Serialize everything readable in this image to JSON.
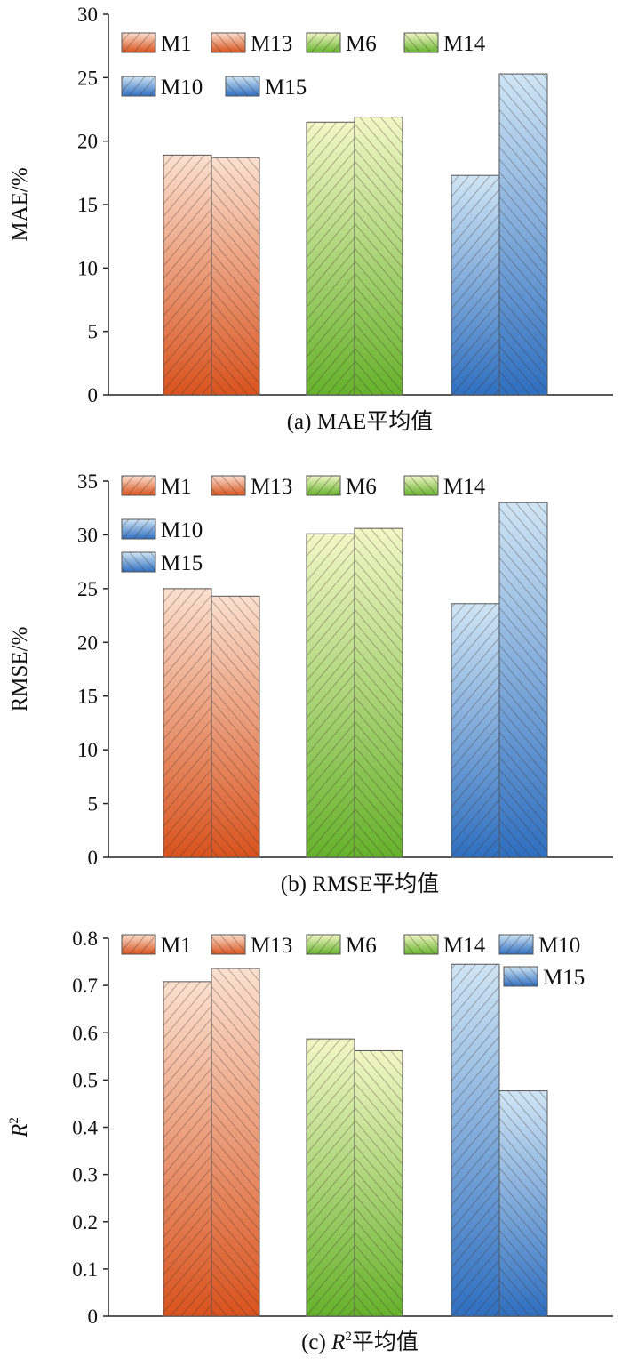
{
  "colors": {
    "M1": [
      "#fbe0cf",
      "#d9531e"
    ],
    "M13": [
      "#fbe0cf",
      "#d9531e"
    ],
    "M6": [
      "#f2f7c6",
      "#66b22c"
    ],
    "M14": [
      "#f2f7c6",
      "#66b22c"
    ],
    "M10": [
      "#cfe5f5",
      "#2f6fc0"
    ],
    "M15": [
      "#cfe5f5",
      "#2f6fc0"
    ]
  },
  "chart_data": [
    {
      "type": "bar",
      "caption": "(a) MAE平均值",
      "ylabel": "MAE/%",
      "ylim": [
        0,
        30
      ],
      "yticks": [
        "0",
        "5",
        "10",
        "15",
        "20",
        "25",
        "30"
      ],
      "legend": [
        [
          "M1",
          "M13",
          "M6",
          "M14"
        ],
        [
          "M10",
          "M15"
        ]
      ],
      "groups": [
        {
          "series": [
            "M1",
            "M13"
          ],
          "values": [
            18.9,
            18.7
          ]
        },
        {
          "series": [
            "M6",
            "M14"
          ],
          "values": [
            21.5,
            21.9
          ]
        },
        {
          "series": [
            "M10",
            "M15"
          ],
          "values": [
            17.3,
            25.3
          ]
        }
      ]
    },
    {
      "type": "bar",
      "caption": "(b) RMSE平均值",
      "ylabel": "RMSE/%",
      "ylim": [
        0,
        35
      ],
      "yticks": [
        "0",
        "5",
        "10",
        "15",
        "20",
        "25",
        "30",
        "35"
      ],
      "legend": [
        [
          "M1",
          "M13",
          "M6",
          "M14"
        ],
        [
          "M10"
        ],
        [
          "M15"
        ]
      ],
      "groups": [
        {
          "series": [
            "M1",
            "M13"
          ],
          "values": [
            25.0,
            24.3
          ]
        },
        {
          "series": [
            "M6",
            "M14"
          ],
          "values": [
            30.1,
            30.6
          ]
        },
        {
          "series": [
            "M10",
            "M15"
          ],
          "values": [
            23.6,
            33.0
          ]
        }
      ]
    },
    {
      "type": "bar",
      "caption": "(c) R²平均值",
      "ylabel": "R²",
      "ylim": [
        0,
        0.8
      ],
      "yticks": [
        "0",
        "0.1",
        "0.2",
        "0.3",
        "0.4",
        "0.5",
        "0.6",
        "0.7",
        "0.8"
      ],
      "legend": [
        [
          "M1",
          "M13",
          "M6",
          "M14",
          "M10"
        ],
        [
          "M15"
        ]
      ],
      "groups": [
        {
          "series": [
            "M1",
            "M13"
          ],
          "values": [
            0.708,
            0.736
          ]
        },
        {
          "series": [
            "M6",
            "M14"
          ],
          "values": [
            0.587,
            0.562
          ]
        },
        {
          "series": [
            "M10",
            "M15"
          ],
          "values": [
            0.745,
            0.477
          ]
        }
      ]
    }
  ]
}
